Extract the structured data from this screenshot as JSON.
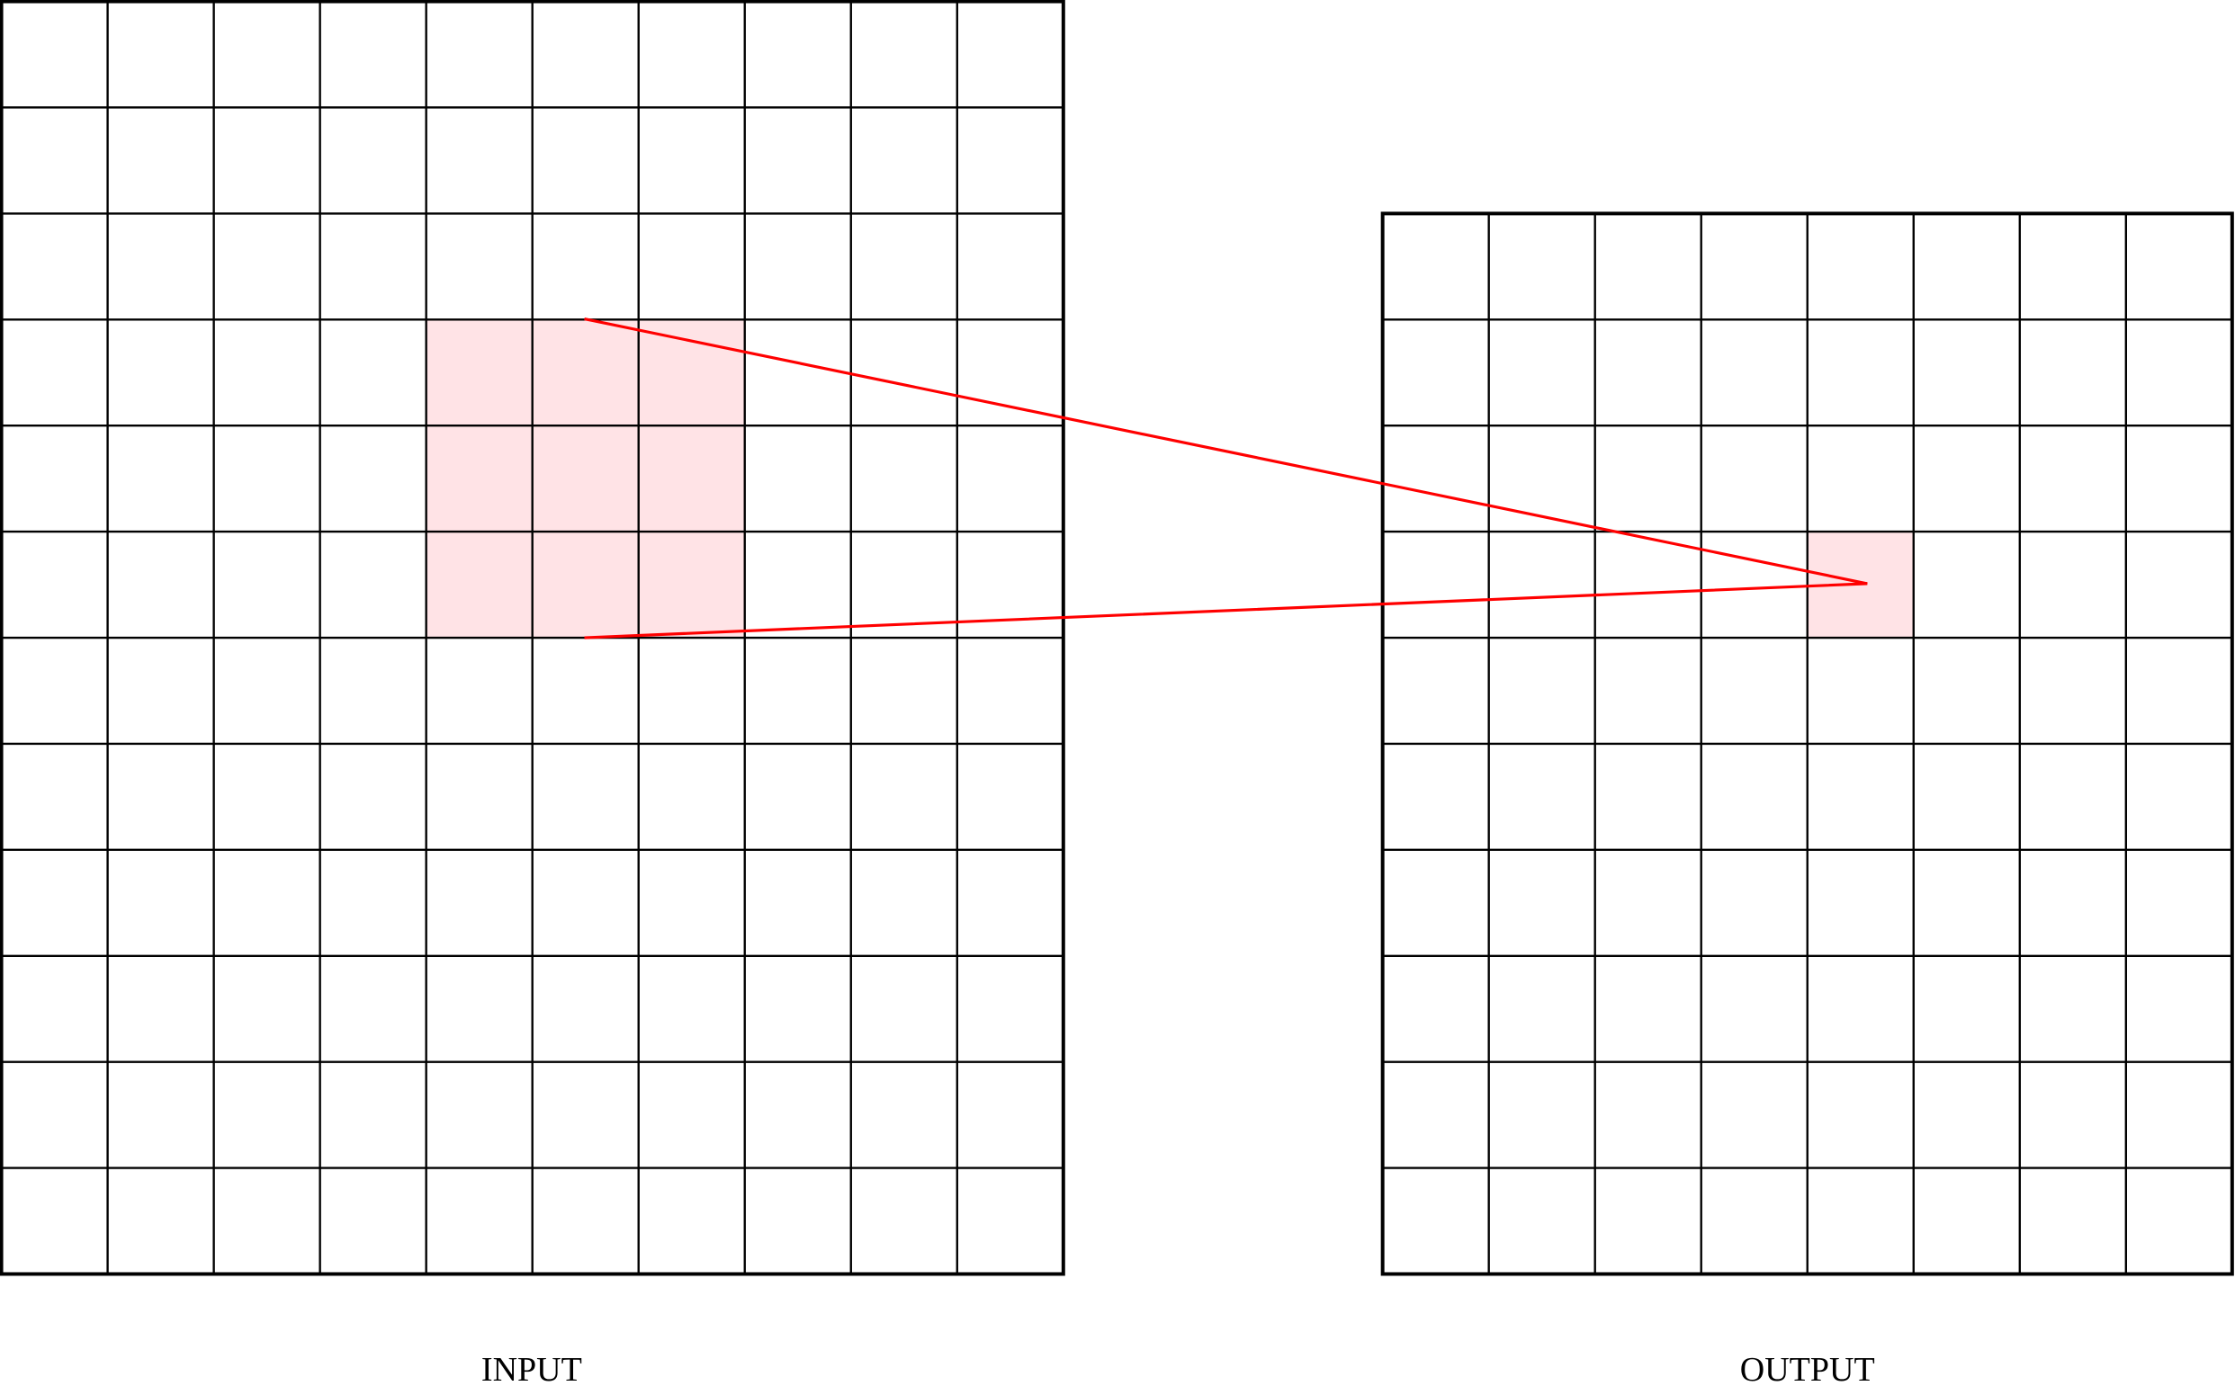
{
  "labels": {
    "input": "INPUT",
    "output": "OUTPUT"
  }
}
